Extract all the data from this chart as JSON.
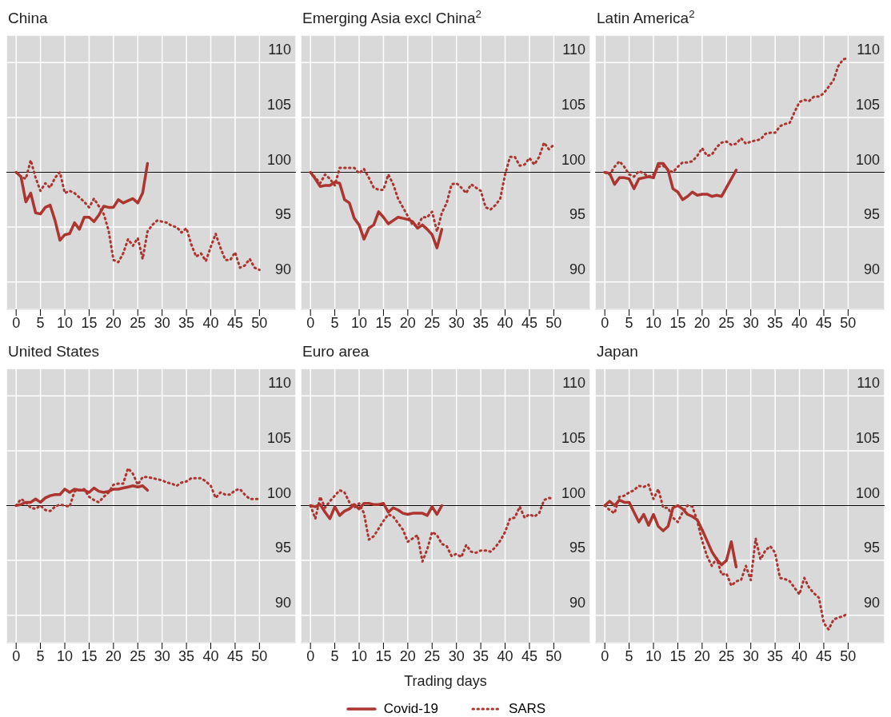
{
  "chart_data": [
    {
      "type": "line",
      "title": "China",
      "x": [
        0,
        1,
        2,
        3,
        4,
        5,
        6,
        7,
        8,
        9,
        10,
        11,
        12,
        13,
        14,
        15,
        16,
        17,
        18,
        19,
        20,
        21,
        22,
        23,
        24,
        25,
        26,
        27,
        28,
        29,
        30,
        31,
        32,
        33,
        34,
        35,
        36,
        37,
        38,
        39,
        40,
        41,
        42,
        43,
        44,
        45,
        46,
        47,
        48,
        49,
        50
      ],
      "xlim": [
        -2,
        57.5
      ],
      "ylim": [
        87.5,
        112.5
      ],
      "xticks": [
        0,
        5,
        10,
        15,
        20,
        25,
        30,
        35,
        40,
        45,
        50
      ],
      "yticks": [
        90,
        95,
        100,
        105,
        110
      ],
      "grid": true,
      "ref_lines": [
        {
          "axis": "y",
          "value": 100,
          "color": "#000000"
        }
      ],
      "series": [
        {
          "color": "#ad3530",
          "line_style": "solid",
          "values": [
            100,
            99.6,
            97.3,
            98.1,
            96.3,
            96.2,
            96.8,
            97.0,
            95.6,
            93.8,
            94.3,
            94.4,
            95.4,
            94.8,
            95.9,
            95.9,
            95.5,
            96.1,
            96.9,
            96.8,
            96.8,
            97.5,
            97.2,
            97.4,
            97.6,
            97.2,
            98.1,
            100.8,
            null,
            null,
            null,
            null,
            null,
            null,
            null,
            null,
            null,
            null,
            null,
            null,
            null,
            null,
            null,
            null,
            null,
            null,
            null,
            null,
            null,
            null,
            null
          ]
        },
        {
          "color": "#ad3530",
          "line_style": "dotted",
          "values": [
            100,
            99.6,
            99.4,
            101.1,
            99.5,
            98.3,
            99.0,
            98.6,
            99.5,
            100,
            98.1,
            98.3,
            98.1,
            97.7,
            97.3,
            96.8,
            97.6,
            96.9,
            96.2,
            94.7,
            92.0,
            91.8,
            92.6,
            93.9,
            93.3,
            94.0,
            92.1,
            94.6,
            95.2,
            95.6,
            95.5,
            95.4,
            95.1,
            95.0,
            94.5,
            94.9,
            93.4,
            92.3,
            92.6,
            91.9,
            93.2,
            94.4,
            93.1,
            92.0,
            92.0,
            92.7,
            91.3,
            91.5,
            92.1,
            91.3,
            91.1
          ]
        }
      ]
    },
    {
      "type": "line",
      "title": "Emerging Asia excl China$^{2}$",
      "x": [
        0,
        1,
        2,
        3,
        4,
        5,
        6,
        7,
        8,
        9,
        10,
        11,
        12,
        13,
        14,
        15,
        16,
        17,
        18,
        19,
        20,
        21,
        22,
        23,
        24,
        25,
        26,
        27,
        28,
        29,
        30,
        31,
        32,
        33,
        34,
        35,
        36,
        37,
        38,
        39,
        40,
        41,
        42,
        43,
        44,
        45,
        46,
        47,
        48,
        49,
        50
      ],
      "xlim": [
        -2,
        57.5
      ],
      "ylim": [
        87.5,
        112.5
      ],
      "xticks": [
        0,
        5,
        10,
        15,
        20,
        25,
        30,
        35,
        40,
        45,
        50
      ],
      "yticks": [
        90,
        95,
        100,
        105,
        110
      ],
      "grid": true,
      "ref_lines": [
        {
          "axis": "y",
          "value": 100,
          "color": "#000000"
        }
      ],
      "series": [
        {
          "color": "#ad3530",
          "line_style": "solid",
          "values": [
            100,
            99.4,
            98.7,
            98.8,
            98.8,
            99.1,
            99.0,
            97.5,
            97.2,
            95.8,
            95.2,
            93.9,
            94.9,
            95.2,
            96.4,
            95.9,
            95.3,
            95.6,
            95.9,
            95.8,
            95.7,
            95.5,
            94.9,
            95.2,
            94.8,
            94.3,
            93.1,
            94.8,
            null,
            null,
            null,
            null,
            null,
            null,
            null,
            null,
            null,
            null,
            null,
            null,
            null,
            null,
            null,
            null,
            null,
            null,
            null,
            null,
            null,
            null,
            null
          ]
        },
        {
          "color": "#ad3530",
          "line_style": "dotted",
          "values": [
            100,
            99.5,
            99.0,
            99.8,
            99.4,
            98.8,
            100.4,
            100.4,
            100.4,
            100.4,
            99.9,
            100.3,
            99.5,
            98.6,
            98.4,
            98.4,
            99.8,
            98.9,
            97.6,
            96.8,
            96.0,
            95.2,
            95.1,
            95.9,
            95.9,
            96.4,
            94.6,
            96.3,
            97.2,
            98.9,
            99.0,
            98.6,
            98.1,
            98.9,
            98.6,
            98.3,
            96.8,
            96.6,
            97.0,
            97.6,
            99.8,
            101.4,
            101.4,
            100.6,
            100.7,
            101.3,
            100.7,
            101.4,
            102.7,
            102.1,
            102.5
          ]
        }
      ]
    },
    {
      "type": "line",
      "title": "Latin America$^{2}$",
      "x": [
        0,
        1,
        2,
        3,
        4,
        5,
        6,
        7,
        8,
        9,
        10,
        11,
        12,
        13,
        14,
        15,
        16,
        17,
        18,
        19,
        20,
        21,
        22,
        23,
        24,
        25,
        26,
        27,
        28,
        29,
        30,
        31,
        32,
        33,
        34,
        35,
        36,
        37,
        38,
        39,
        40,
        41,
        42,
        43,
        44,
        45,
        46,
        47,
        48,
        49,
        50
      ],
      "xlim": [
        -2,
        57.5
      ],
      "ylim": [
        87.5,
        112.5
      ],
      "xticks": [
        0,
        5,
        10,
        15,
        20,
        25,
        30,
        35,
        40,
        45,
        50
      ],
      "yticks": [
        90,
        95,
        100,
        105,
        110
      ],
      "grid": true,
      "ref_lines": [
        {
          "axis": "y",
          "value": 100,
          "color": "#000000"
        }
      ],
      "series": [
        {
          "color": "#ad3530",
          "line_style": "solid",
          "values": [
            100,
            99.9,
            98.9,
            99.5,
            99.5,
            99.4,
            98.5,
            99.4,
            99.5,
            99.6,
            99.5,
            100.8,
            100.8,
            100.2,
            98.5,
            98.2,
            97.5,
            97.8,
            98.2,
            97.9,
            98.0,
            98.0,
            97.8,
            97.9,
            97.8,
            98.6,
            99.4,
            100.2,
            null,
            null,
            null,
            null,
            null,
            null,
            null,
            null,
            null,
            null,
            null,
            null,
            null,
            null,
            null,
            null,
            null,
            null,
            null,
            null,
            null,
            null,
            null
          ]
        },
        {
          "color": "#ad3530",
          "line_style": "dotted",
          "values": [
            100,
            99.8,
            100.5,
            101.0,
            100.5,
            99.8,
            99.6,
            100.1,
            99.9,
            99.6,
            99.8,
            100.5,
            100.6,
            100.2,
            100.0,
            100.5,
            100.9,
            100.9,
            101.0,
            101.5,
            102.2,
            101.5,
            101.6,
            102.3,
            102.7,
            102.8,
            102.5,
            102.6,
            103.1,
            102.6,
            102.8,
            102.9,
            103.0,
            103.5,
            103.6,
            103.6,
            104.2,
            104.4,
            104.5,
            105.5,
            106.4,
            106.6,
            106.5,
            106.9,
            106.9,
            107.2,
            107.8,
            108.4,
            109.7,
            110.3,
            110.4
          ]
        }
      ]
    },
    {
      "type": "line",
      "title": "United States",
      "x": [
        0,
        1,
        2,
        3,
        4,
        5,
        6,
        7,
        8,
        9,
        10,
        11,
        12,
        13,
        14,
        15,
        16,
        17,
        18,
        19,
        20,
        21,
        22,
        23,
        24,
        25,
        26,
        27,
        28,
        29,
        30,
        31,
        32,
        33,
        34,
        35,
        36,
        37,
        38,
        39,
        40,
        41,
        42,
        43,
        44,
        45,
        46,
        47,
        48,
        49,
        50
      ],
      "xlim": [
        -2,
        57.5
      ],
      "ylim": [
        87.5,
        112.5
      ],
      "xticks": [
        0,
        5,
        10,
        15,
        20,
        25,
        30,
        35,
        40,
        45,
        50
      ],
      "yticks": [
        90,
        95,
        100,
        105,
        110
      ],
      "grid": true,
      "ref_lines": [
        {
          "axis": "y",
          "value": 100,
          "color": "#000000"
        }
      ],
      "series": [
        {
          "color": "#ad3530",
          "line_style": "solid",
          "values": [
            100,
            100.1,
            100.3,
            100.3,
            100.6,
            100.3,
            100.7,
            100.9,
            101.0,
            101.0,
            101.5,
            101.2,
            101.5,
            101.4,
            101.4,
            101.2,
            101.6,
            101.3,
            101.2,
            101.3,
            101.5,
            101.5,
            101.6,
            101.7,
            101.8,
            101.7,
            101.8,
            101.4,
            null,
            null,
            null,
            null,
            null,
            null,
            null,
            null,
            null,
            null,
            null,
            null,
            null,
            null,
            null,
            null,
            null,
            null,
            null,
            null,
            null,
            null,
            null
          ]
        },
        {
          "color": "#ad3530",
          "line_style": "dotted",
          "values": [
            100,
            100.6,
            100.3,
            99.8,
            99.7,
            100.0,
            99.6,
            99.5,
            99.9,
            100.1,
            100.0,
            99.9,
            101.3,
            101.4,
            101.5,
            100.8,
            100.5,
            100.3,
            100.8,
            101.2,
            101.9,
            102.0,
            102.0,
            103.4,
            102.9,
            101.9,
            102.6,
            102.6,
            102.5,
            102.4,
            102.3,
            102.1,
            102.0,
            101.8,
            102.1,
            102.2,
            102.5,
            102.5,
            102.5,
            102.2,
            101.8,
            100.7,
            101.2,
            101.0,
            101.0,
            101.4,
            101.5,
            101.0,
            100.6,
            100.6,
            100.6
          ]
        }
      ]
    },
    {
      "type": "line",
      "title": "Euro area",
      "xlabel": "Trading days",
      "legend": "bottom",
      "x": [
        0,
        1,
        2,
        3,
        4,
        5,
        6,
        7,
        8,
        9,
        10,
        11,
        12,
        13,
        14,
        15,
        16,
        17,
        18,
        19,
        20,
        21,
        22,
        23,
        24,
        25,
        26,
        27,
        28,
        29,
        30,
        31,
        32,
        33,
        34,
        35,
        36,
        37,
        38,
        39,
        40,
        41,
        42,
        43,
        44,
        45,
        46,
        47,
        48,
        49,
        50
      ],
      "xlim": [
        -2,
        57.5
      ],
      "ylim": [
        87.5,
        112.5
      ],
      "xticks": [
        0,
        5,
        10,
        15,
        20,
        25,
        30,
        35,
        40,
        45,
        50
      ],
      "yticks": [
        90,
        95,
        100,
        105,
        110
      ],
      "grid": true,
      "ref_lines": [
        {
          "axis": "y",
          "value": 100,
          "color": "#000000"
        }
      ],
      "series": [
        {
          "name": "Covid-19",
          "color": "#ad3530",
          "line_style": "solid",
          "values": [
            100,
            99.9,
            100.1,
            99.4,
            98.8,
            99.9,
            99.1,
            99.5,
            99.7,
            100.1,
            99.7,
            100.2,
            100.2,
            100.1,
            100.1,
            100.2,
            99.4,
            99.8,
            99.6,
            99.3,
            99.2,
            99.3,
            99.3,
            99.3,
            99.1,
            99.9,
            99.2,
            100.0,
            null,
            null,
            null,
            null,
            null,
            null,
            null,
            null,
            null,
            null,
            null,
            null,
            null,
            null,
            null,
            null,
            null,
            null,
            null,
            null,
            null,
            null,
            null
          ]
        },
        {
          "name": "SARS",
          "color": "#ad3530",
          "line_style": "dotted",
          "values": [
            100,
            98.8,
            100.8,
            99.8,
            100.4,
            100.9,
            101.4,
            101.2,
            100.3,
            99.8,
            100.2,
            99.3,
            96.9,
            97.2,
            97.9,
            98.6,
            99.2,
            99.0,
            98.4,
            97.8,
            96.7,
            97.0,
            97.3,
            94.9,
            96.0,
            97.6,
            97.3,
            96.5,
            96.3,
            95.4,
            95.6,
            95.3,
            96.4,
            95.8,
            95.7,
            95.9,
            95.9,
            95.8,
            96.2,
            96.8,
            97.6,
            98.8,
            98.9,
            99.9,
            98.9,
            99.2,
            99.0,
            99.3,
            100.5,
            100.7,
            100.6
          ]
        }
      ]
    },
    {
      "type": "line",
      "title": "Japan",
      "x": [
        0,
        1,
        2,
        3,
        4,
        5,
        6,
        7,
        8,
        9,
        10,
        11,
        12,
        13,
        14,
        15,
        16,
        17,
        18,
        19,
        20,
        21,
        22,
        23,
        24,
        25,
        26,
        27,
        28,
        29,
        30,
        31,
        32,
        33,
        34,
        35,
        36,
        37,
        38,
        39,
        40,
        41,
        42,
        43,
        44,
        45,
        46,
        47,
        48,
        49,
        50
      ],
      "xlim": [
        -2,
        57.5
      ],
      "ylim": [
        87.5,
        112.5
      ],
      "xticks": [
        0,
        5,
        10,
        15,
        20,
        25,
        30,
        35,
        40,
        45,
        50
      ],
      "yticks": [
        90,
        95,
        100,
        105,
        110
      ],
      "grid": true,
      "ref_lines": [
        {
          "axis": "y",
          "value": 100,
          "color": "#000000"
        }
      ],
      "series": [
        {
          "color": "#ad3530",
          "line_style": "solid",
          "values": [
            100,
            100.4,
            100.0,
            100.5,
            100.3,
            100.3,
            99.4,
            98.5,
            99.2,
            98.2,
            99.2,
            98.1,
            97.7,
            98.1,
            99.8,
            100.0,
            99.7,
            99.2,
            99.0,
            98.7,
            97.8,
            96.8,
            95.8,
            95.1,
            94.6,
            95.0,
            96.7,
            94.4,
            null,
            null,
            null,
            null,
            null,
            null,
            null,
            null,
            null,
            null,
            null,
            null,
            null,
            null,
            null,
            null,
            null,
            null,
            null,
            null,
            null,
            null,
            null
          ]
        },
        {
          "color": "#ad3530",
          "line_style": "dotted",
          "values": [
            100,
            99.6,
            99.3,
            100.8,
            100.9,
            101.2,
            101.4,
            101.8,
            101.7,
            101.9,
            100.6,
            101.5,
            99.8,
            99.8,
            98.9,
            98.5,
            99.4,
            100.0,
            99.9,
            98.6,
            96.8,
            95.4,
            94.5,
            95.2,
            93.7,
            93.8,
            92.7,
            93.1,
            93.2,
            94.5,
            93.2,
            97.0,
            95.1,
            95.9,
            96.3,
            95.7,
            93.4,
            93.3,
            93.1,
            92.5,
            91.9,
            93.4,
            92.5,
            92.0,
            91.6,
            89.3,
            88.7,
            89.6,
            89.8,
            89.9,
            90.2
          ]
        }
      ]
    }
  ]
}
